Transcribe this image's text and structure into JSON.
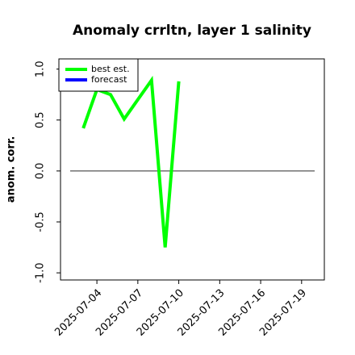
{
  "chart_data": {
    "type": "line",
    "title": "Anomaly crrltn, layer 1 salinity",
    "ylabel": "anom. corr.",
    "x": [
      "2025-07-03",
      "2025-07-04",
      "2025-07-05",
      "2025-07-06",
      "2025-07-07",
      "2025-07-08",
      "2025-07-09",
      "2025-07-10"
    ],
    "series": [
      {
        "name": "best est.",
        "color": "#00ff00",
        "values": [
          0.42,
          0.8,
          0.75,
          0.51,
          0.7,
          0.89,
          -0.75,
          0.88
        ]
      },
      {
        "name": "forecast",
        "color": "#0000ff",
        "values": [
          null,
          null,
          null,
          null,
          null,
          null,
          null,
          null
        ]
      }
    ],
    "xlim": [
      "2025-07-01T08:00",
      "2025-07-20T16:00"
    ],
    "xticks": [
      "2025-07-04",
      "2025-07-07",
      "2025-07-10",
      "2025-07-13",
      "2025-07-16",
      "2025-07-19"
    ],
    "xtick_colors": [
      "#000000",
      "#000000",
      "#228b22",
      "#000000",
      "#000000",
      "#000000"
    ],
    "ylim": [
      -1.07,
      1.1
    ],
    "yticks": [
      {
        "value": -1,
        "label": "-1.0"
      },
      -0.5,
      {
        "value": 0,
        "label": "0.0"
      },
      0.5,
      {
        "value": 1,
        "label": "1.0"
      }
    ],
    "hline": 0,
    "legend": "upper left"
  }
}
